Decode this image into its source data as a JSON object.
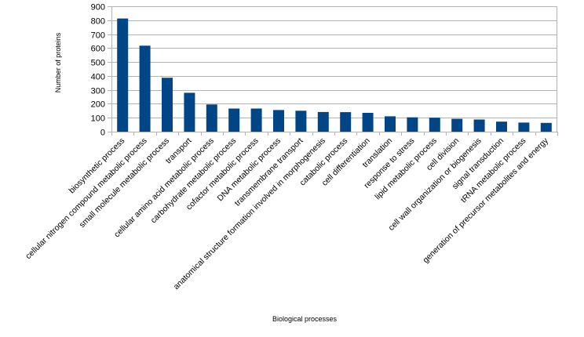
{
  "chart_data": {
    "type": "bar",
    "title": "",
    "xlabel": "Biological processes",
    "ylabel": "Number of proteins",
    "ylim": [
      0,
      900
    ],
    "yticks": [
      0,
      100,
      200,
      300,
      400,
      500,
      600,
      700,
      800,
      900
    ],
    "grid": true,
    "legend": "none",
    "bar_color": "#004586",
    "categories": [
      "biosynthetic process",
      "cellular nitrogen compound metabolic process",
      "small molecule metabolic process",
      "transport",
      "cellular amino acid metabolic process",
      "carbohydrate metabolic process",
      "cofactor metabolic process",
      "DNA metabolic process",
      "transmembrane transport",
      "anatomical structure formation involved in morphogenesis",
      "catabolic process",
      "cell differentiation",
      "translation",
      "response to stress",
      "lipid metabolic process",
      "cell division",
      "cell wall organization or biogenesis",
      "signal transduction",
      "tRNA metabolic process",
      "generation of precursor metabolites and energy"
    ],
    "values": [
      812,
      617,
      387,
      279,
      195,
      166,
      166,
      155,
      150,
      141,
      140,
      135,
      110,
      103,
      100,
      92,
      87,
      72,
      65,
      63
    ]
  }
}
